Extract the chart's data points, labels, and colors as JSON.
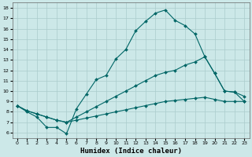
{
  "xlabel": "Humidex (Indice chaleur)",
  "background_color": "#cce8e8",
  "grid_color": "#aacccc",
  "line_color": "#006666",
  "xlim": [
    -0.5,
    23.5
  ],
  "ylim": [
    5.5,
    18.5
  ],
  "xticks": [
    0,
    1,
    2,
    3,
    4,
    5,
    6,
    7,
    8,
    9,
    10,
    11,
    12,
    13,
    14,
    15,
    16,
    17,
    18,
    19,
    20,
    21,
    22,
    23
  ],
  "yticks": [
    6,
    7,
    8,
    9,
    10,
    11,
    12,
    13,
    14,
    15,
    16,
    17,
    18
  ],
  "line1_x": [
    0,
    1,
    2,
    3,
    4,
    5,
    6,
    7,
    8,
    9,
    10,
    11,
    12,
    13,
    14,
    15,
    16,
    17,
    18,
    19,
    20,
    21,
    22,
    23
  ],
  "line1_y": [
    8.6,
    8.0,
    7.5,
    6.5,
    6.5,
    5.9,
    8.3,
    9.7,
    11.1,
    11.5,
    13.1,
    14.0,
    15.8,
    16.7,
    17.5,
    17.8,
    16.8,
    16.3,
    15.5,
    13.3,
    11.7,
    10.0,
    9.9,
    9.0
  ],
  "line2_x": [
    0,
    1,
    2,
    3,
    4,
    5,
    6,
    7,
    8,
    9,
    10,
    11,
    12,
    13,
    14,
    15,
    16,
    17,
    18,
    19,
    20,
    21,
    22,
    23
  ],
  "line2_y": [
    8.6,
    8.1,
    7.8,
    7.5,
    7.2,
    7.0,
    7.5,
    8.0,
    8.5,
    9.0,
    9.5,
    10.0,
    10.5,
    11.0,
    11.5,
    11.8,
    12.0,
    12.5,
    12.8,
    13.3,
    11.7,
    10.0,
    9.9,
    9.5
  ],
  "line3_x": [
    0,
    1,
    2,
    3,
    4,
    5,
    6,
    7,
    8,
    9,
    10,
    11,
    12,
    13,
    14,
    15,
    16,
    17,
    18,
    19,
    20,
    21,
    22,
    23
  ],
  "line3_y": [
    8.6,
    8.1,
    7.8,
    7.5,
    7.2,
    7.0,
    7.2,
    7.4,
    7.6,
    7.8,
    8.0,
    8.2,
    8.4,
    8.6,
    8.8,
    9.0,
    9.1,
    9.2,
    9.3,
    9.4,
    9.2,
    9.0,
    9.0,
    9.0
  ],
  "markersize": 2.0,
  "linewidth": 0.8,
  "tick_fontsize": 4.5,
  "xlabel_fontsize": 6.5
}
